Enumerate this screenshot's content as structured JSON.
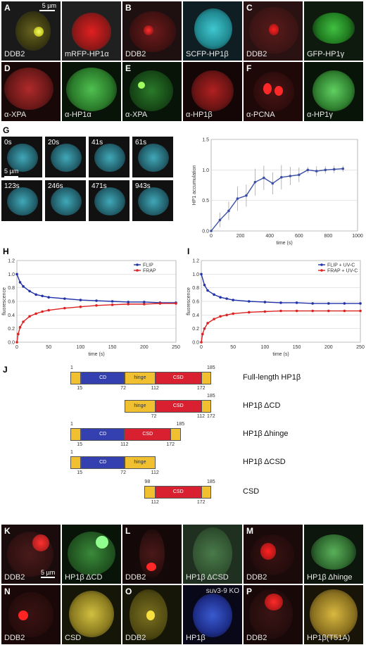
{
  "top_row": {
    "A": {
      "letter": "A",
      "left": "DDB2",
      "right": "mRFP-HP1α",
      "scale": "5 µm"
    },
    "B": {
      "letter": "B",
      "left": "DDB2",
      "right": "SCFP-HP1β"
    },
    "C": {
      "letter": "C",
      "left": "DDB2",
      "right": "GFP-HP1γ"
    }
  },
  "second_row": {
    "D": {
      "letter": "D",
      "left": "α-XPA",
      "right": "α-HP1α"
    },
    "E": {
      "letter": "E",
      "left": "α-XPA",
      "right": "α-HP1β"
    },
    "F": {
      "letter": "F",
      "left": "α-PCNA",
      "right": "α-HP1γ"
    }
  },
  "panel_G": {
    "letter": "G",
    "frames": [
      "0s",
      "20s",
      "41s",
      "61s",
      "123s",
      "246s",
      "471s",
      "943s"
    ],
    "scale": "5 µm"
  },
  "panel_H": {
    "letter": "H"
  },
  "panel_I": {
    "letter": "I"
  },
  "chart_data": [
    {
      "type": "line",
      "panel": "G",
      "xlabel": "time (s)",
      "ylabel": "HP1 accumulation",
      "xlim": [
        0,
        1000
      ],
      "ylim": [
        0,
        1.5
      ],
      "xticks": [
        0,
        200,
        400,
        600,
        800,
        1000
      ],
      "yticks": [
        0.0,
        0.5,
        1.0,
        1.5
      ],
      "grid": true,
      "series": [
        {
          "x": [
            0,
            60,
            120,
            180,
            240,
            300,
            360,
            420,
            480,
            540,
            600,
            660,
            720,
            780,
            840,
            900
          ],
          "y": [
            0,
            0.18,
            0.33,
            0.53,
            0.58,
            0.8,
            0.87,
            0.78,
            0.88,
            0.9,
            0.92,
            1.0,
            0.98,
            1.0,
            1.01,
            1.02
          ],
          "err": [
            0,
            0.12,
            0.15,
            0.2,
            0.18,
            0.22,
            0.2,
            0.18,
            0.2,
            0.15,
            0.12,
            0.05,
            0.08,
            0.06,
            0.06,
            0.05
          ],
          "color": "#3b4fa8"
        }
      ]
    },
    {
      "type": "line",
      "panel": "H",
      "xlabel": "time (s)",
      "ylabel": "fluorescence",
      "xlim": [
        0,
        250
      ],
      "ylim": [
        0,
        1.2
      ],
      "xticks": [
        0,
        50,
        100,
        150,
        200,
        250
      ],
      "yticks": [
        0.0,
        0.2,
        0.4,
        0.6,
        0.8,
        1.0,
        1.2
      ],
      "grid": true,
      "legend": "top-right",
      "series": [
        {
          "name": "FLIP",
          "color": "#2233aa",
          "x": [
            0,
            5,
            10,
            20,
            30,
            40,
            50,
            75,
            100,
            125,
            150,
            175,
            200,
            225,
            250
          ],
          "y": [
            1.0,
            0.88,
            0.82,
            0.75,
            0.7,
            0.68,
            0.66,
            0.64,
            0.62,
            0.61,
            0.6,
            0.59,
            0.59,
            0.58,
            0.58
          ]
        },
        {
          "name": "FRAP",
          "color": "#dd2222",
          "x": [
            0,
            2,
            5,
            10,
            20,
            30,
            40,
            50,
            75,
            100,
            125,
            150,
            175,
            200,
            225,
            250
          ],
          "y": [
            0.0,
            0.12,
            0.22,
            0.3,
            0.38,
            0.42,
            0.45,
            0.47,
            0.5,
            0.52,
            0.54,
            0.55,
            0.56,
            0.56,
            0.57,
            0.57
          ]
        }
      ]
    },
    {
      "type": "line",
      "panel": "I",
      "xlabel": "time (s)",
      "ylabel": "fluorescence",
      "xlim": [
        0,
        250
      ],
      "ylim": [
        0,
        1.2
      ],
      "xticks": [
        0,
        50,
        100,
        150,
        200,
        250
      ],
      "yticks": [
        0.0,
        0.2,
        0.4,
        0.6,
        0.8,
        1.0,
        1.2
      ],
      "grid": true,
      "legend": "top-right",
      "series": [
        {
          "name": "FLIP + UV-C",
          "color": "#2233aa",
          "x": [
            0,
            5,
            10,
            20,
            30,
            40,
            50,
            75,
            100,
            125,
            150,
            175,
            200,
            225,
            250
          ],
          "y": [
            1.0,
            0.84,
            0.76,
            0.7,
            0.66,
            0.64,
            0.62,
            0.6,
            0.59,
            0.58,
            0.58,
            0.57,
            0.57,
            0.57,
            0.57
          ]
        },
        {
          "name": "FRAP + UV-C",
          "color": "#dd2222",
          "x": [
            0,
            2,
            5,
            10,
            20,
            30,
            40,
            50,
            75,
            100,
            125,
            150,
            175,
            200,
            225,
            250
          ],
          "y": [
            0.0,
            0.12,
            0.2,
            0.28,
            0.34,
            0.38,
            0.4,
            0.42,
            0.44,
            0.45,
            0.46,
            0.46,
            0.46,
            0.46,
            0.46,
            0.46
          ]
        }
      ]
    }
  ],
  "panel_J": {
    "letter": "J",
    "constructs": [
      {
        "name": "Full-length HP1β",
        "labels_top": [
          "1",
          "185"
        ],
        "labels_bottom": [
          "15",
          "72",
          "112",
          "172"
        ],
        "domains": [
          "CD",
          "hinge",
          "CSD"
        ]
      },
      {
        "name": "HP1β ΔCD",
        "labels_top": [
          "185"
        ],
        "labels_bottom": [
          "72",
          "112",
          "172"
        ],
        "domains": [
          "hinge",
          "CSD"
        ]
      },
      {
        "name": "HP1β Δhinge",
        "labels_top": [
          "1",
          "185"
        ],
        "labels_bottom": [
          "15",
          "112",
          "172"
        ],
        "domains": [
          "CD",
          "CSD"
        ]
      },
      {
        "name": "HP1β ΔCSD",
        "labels_top": [
          "1"
        ],
        "labels_bottom": [
          "15",
          "72",
          "112"
        ],
        "domains": [
          "CD",
          "hinge"
        ]
      },
      {
        "name": "CSD",
        "labels_top": [
          "98",
          "185"
        ],
        "labels_bottom": [
          "112",
          "172"
        ],
        "domains": [
          "CSD"
        ]
      }
    ]
  },
  "bottom_rows": {
    "K": {
      "letter": "K",
      "left": "DDB2",
      "right": "HP1β ΔCD",
      "scale": "5 µm"
    },
    "L": {
      "letter": "L",
      "left": "DDB2",
      "right": "HP1β ΔCSD"
    },
    "M": {
      "letter": "M",
      "left": "DDB2",
      "right": "HP1β Δhinge"
    },
    "N": {
      "letter": "N",
      "left": "DDB2",
      "right": "CSD"
    },
    "O": {
      "letter": "O",
      "left": "DDB2",
      "right": "HP1β",
      "extra": "suv3-9 KO"
    },
    "P": {
      "letter": "P",
      "left": "DDB2",
      "right": "HP1β(T51A)"
    }
  }
}
